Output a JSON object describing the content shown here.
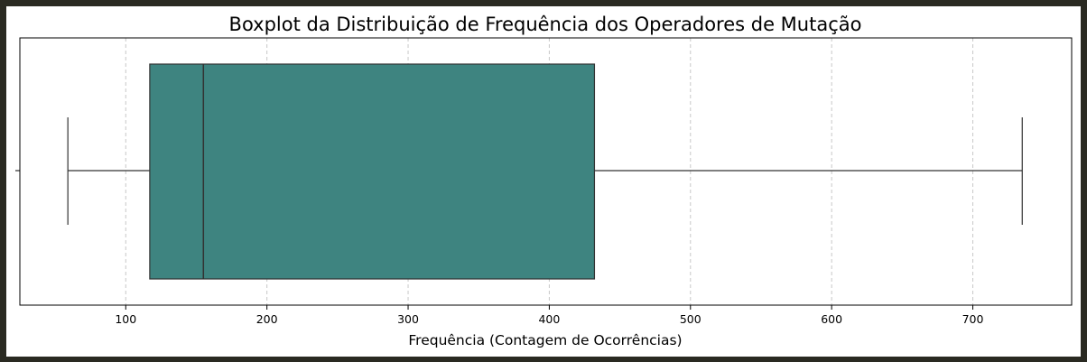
{
  "chart_data": {
    "type": "boxplot",
    "title": "Boxplot da Distribuição de Frequência dos Operadores de Mutação",
    "xlabel": "Frequência (Contagem de Ocorrências)",
    "ylabel": "",
    "orientation": "horizontal",
    "xlim": [
      25,
      770
    ],
    "xticks": [
      100,
      200,
      300,
      400,
      500,
      600,
      700
    ],
    "grid": {
      "x": true,
      "style": "dashed"
    },
    "box": {
      "whisker_low": 59,
      "q1": 117,
      "median": 155,
      "q3": 432,
      "whisker_high": 735
    },
    "colors": {
      "box_fill": "#3e8480",
      "line": "#333333",
      "grid": "#c8c8c8",
      "frame": "#000000"
    }
  }
}
